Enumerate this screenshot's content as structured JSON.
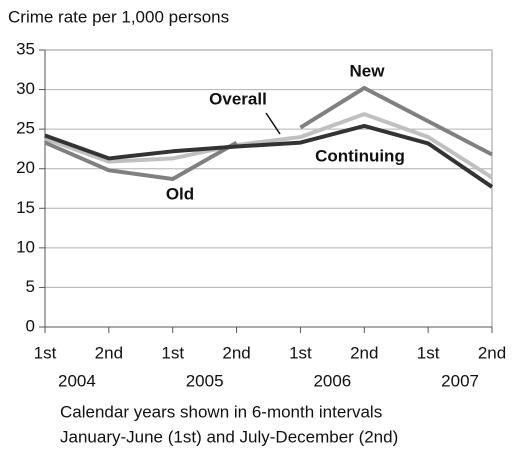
{
  "chart_data": {
    "type": "line",
    "title": "Crime rate per 1,000 persons",
    "categories": [
      "1st",
      "2nd",
      "1st",
      "2nd",
      "1st",
      "2nd",
      "1st",
      "2nd"
    ],
    "year_groups": [
      "2004",
      "2005",
      "2006",
      "2007"
    ],
    "x_label": [
      "Calendar years shown in 6-month intervals",
      "January-June (1st) and July-December (2nd)"
    ],
    "series": [
      {
        "name": "Overall",
        "color": "#c0c0c0",
        "values": [
          23.8,
          20.9,
          21.3,
          23.0,
          24.0,
          26.9,
          24.0,
          18.9
        ]
      },
      {
        "name": "Old",
        "color": "#808080",
        "values": [
          23.3,
          19.8,
          18.7,
          23.3,
          null,
          null,
          null,
          null
        ]
      },
      {
        "name": "New",
        "color": "#808080",
        "values": [
          null,
          null,
          null,
          null,
          25.2,
          30.2,
          26.0,
          21.8
        ]
      },
      {
        "name": "Continuing",
        "color": "#333333",
        "values": [
          24.2,
          21.3,
          22.2,
          22.8,
          23.3,
          25.4,
          23.2,
          17.7
        ]
      }
    ],
    "ylim": [
      0,
      35
    ],
    "yticks": [
      0,
      5,
      10,
      15,
      20,
      25,
      30,
      35
    ],
    "grid": true
  }
}
